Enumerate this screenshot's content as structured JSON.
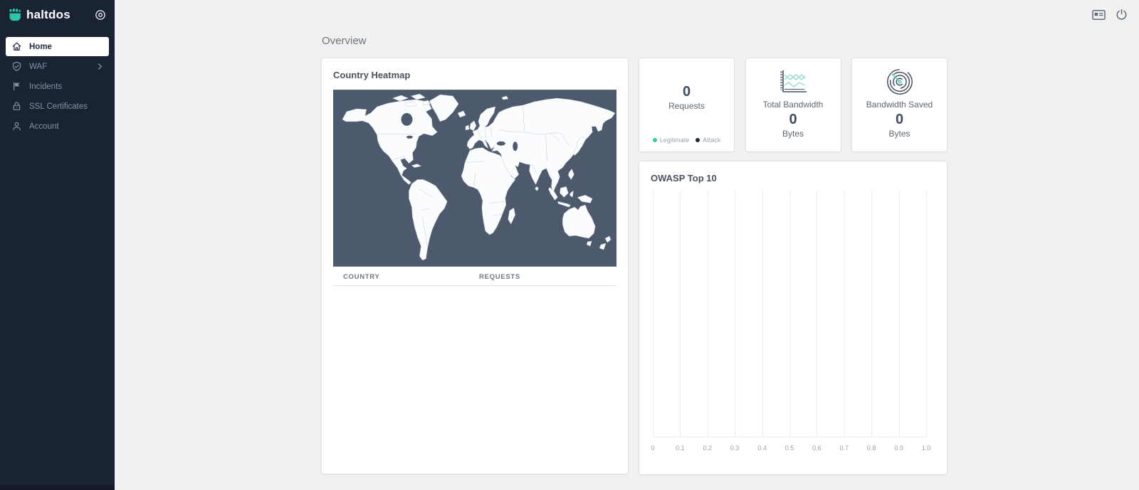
{
  "app": {
    "name": "haltdos"
  },
  "colors": {
    "sidebar_bg": "#1a2333",
    "accent_teal": "#2fc5a8",
    "map_ocean": "#4d5a6d",
    "page_bg": "#f1f1f2",
    "legend_legitimate": "#2ecc8f",
    "legend_attack": "#1d2839"
  },
  "sidebar": {
    "logo": {
      "text": "haltdos",
      "icon": "haltdos-logo-icon"
    },
    "collapse_icon": "target-icon",
    "items": [
      {
        "label": "Home",
        "icon": "home-icon",
        "active": true,
        "has_submenu": false
      },
      {
        "label": "WAF",
        "icon": "shield-icon",
        "active": false,
        "has_submenu": true
      },
      {
        "label": "Incidents",
        "icon": "flag-icon",
        "active": false,
        "has_submenu": false
      },
      {
        "label": "SSL Certificates",
        "icon": "lock-icon",
        "active": false,
        "has_submenu": false
      },
      {
        "label": "Account",
        "icon": "user-icon",
        "active": false,
        "has_submenu": false
      }
    ]
  },
  "topbar": {
    "icons": [
      {
        "name": "profile-card-icon"
      },
      {
        "name": "power-icon"
      }
    ]
  },
  "page": {
    "title": "Overview"
  },
  "country_heatmap": {
    "title": "Country Heatmap",
    "map": "world-map",
    "table": {
      "columns": {
        "country": "Country",
        "requests": "Requests"
      },
      "rows": []
    }
  },
  "stats": {
    "requests": {
      "value": "0",
      "label": "Requests",
      "legend": [
        {
          "label": "Legitimate",
          "color": "#2ecc8f"
        },
        {
          "label": "Attack",
          "color": "#1d2839"
        }
      ]
    },
    "total_bandwidth": {
      "icon": "bandwidth-chart-icon",
      "title": "Total Bandwidth",
      "value": "0",
      "unit": "Bytes"
    },
    "bandwidth_saved": {
      "icon": "spiral-icon",
      "title": "Bandwidth Saved",
      "value": "0",
      "unit": "Bytes"
    }
  },
  "owasp": {
    "title": "OWASP Top 10",
    "chart_data": {
      "type": "bar",
      "orientation": "horizontal",
      "title": "OWASP Top 10",
      "categories": [],
      "values": [],
      "series": [],
      "x_ticks": [
        "0",
        "0.1",
        "0.2",
        "0.3",
        "0.4",
        "0.5",
        "0.6",
        "0.7",
        "0.8",
        "0.9",
        "1.0"
      ],
      "xlim": [
        0,
        1
      ],
      "grid": "vertical",
      "legend_position": "none",
      "empty": true
    }
  }
}
